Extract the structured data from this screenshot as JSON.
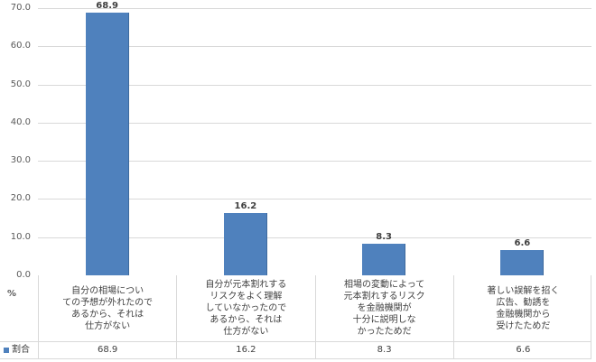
{
  "chart_data": {
    "type": "bar",
    "title": "",
    "xlabel": "",
    "ylabel": "%",
    "ylim": [
      0,
      70
    ],
    "yticks": [
      "0.0",
      "10.0",
      "20.0",
      "30.0",
      "40.0",
      "50.0",
      "60.0",
      "70.0"
    ],
    "grid": true,
    "legend_position": "data-table",
    "categories": [
      "自分の相場についての予想が外れたのであるから、それは仕方がない",
      "自分が元本割れするリスクをよく理解していなかったのであるから、それは仕方がない",
      "相場の変動によって元本割れするリスクを金融機関が十分に説明しなかったためだ",
      "著しい誤解を招く広告、勧誘を金融機関から受けたためだ"
    ],
    "category_lines": [
      "自分の相場につい\nての予想が外れたので\nあるから、それは\n仕方がない",
      "自分が元本割れする\nリスクをよく理解\nしていなかったので\nあるから、それは\n仕方がない",
      "相場の変動によって\n元本割れするリスク\nを金融機関が\n十分に説明しな\nかったためだ",
      "著しい誤解を招く\n広告、勧誘を\n金融機関から\n受けたためだ"
    ],
    "series": [
      {
        "name": "割合",
        "color": "#4f81bd",
        "values": [
          68.9,
          16.2,
          8.3,
          6.6
        ]
      }
    ],
    "value_labels": [
      "68.9",
      "16.2",
      "8.3",
      "6.6"
    ]
  },
  "table": {
    "unit_label": "%",
    "legend_label": "割合",
    "values": [
      "68.9",
      "16.2",
      "8.3",
      "6.6"
    ]
  }
}
